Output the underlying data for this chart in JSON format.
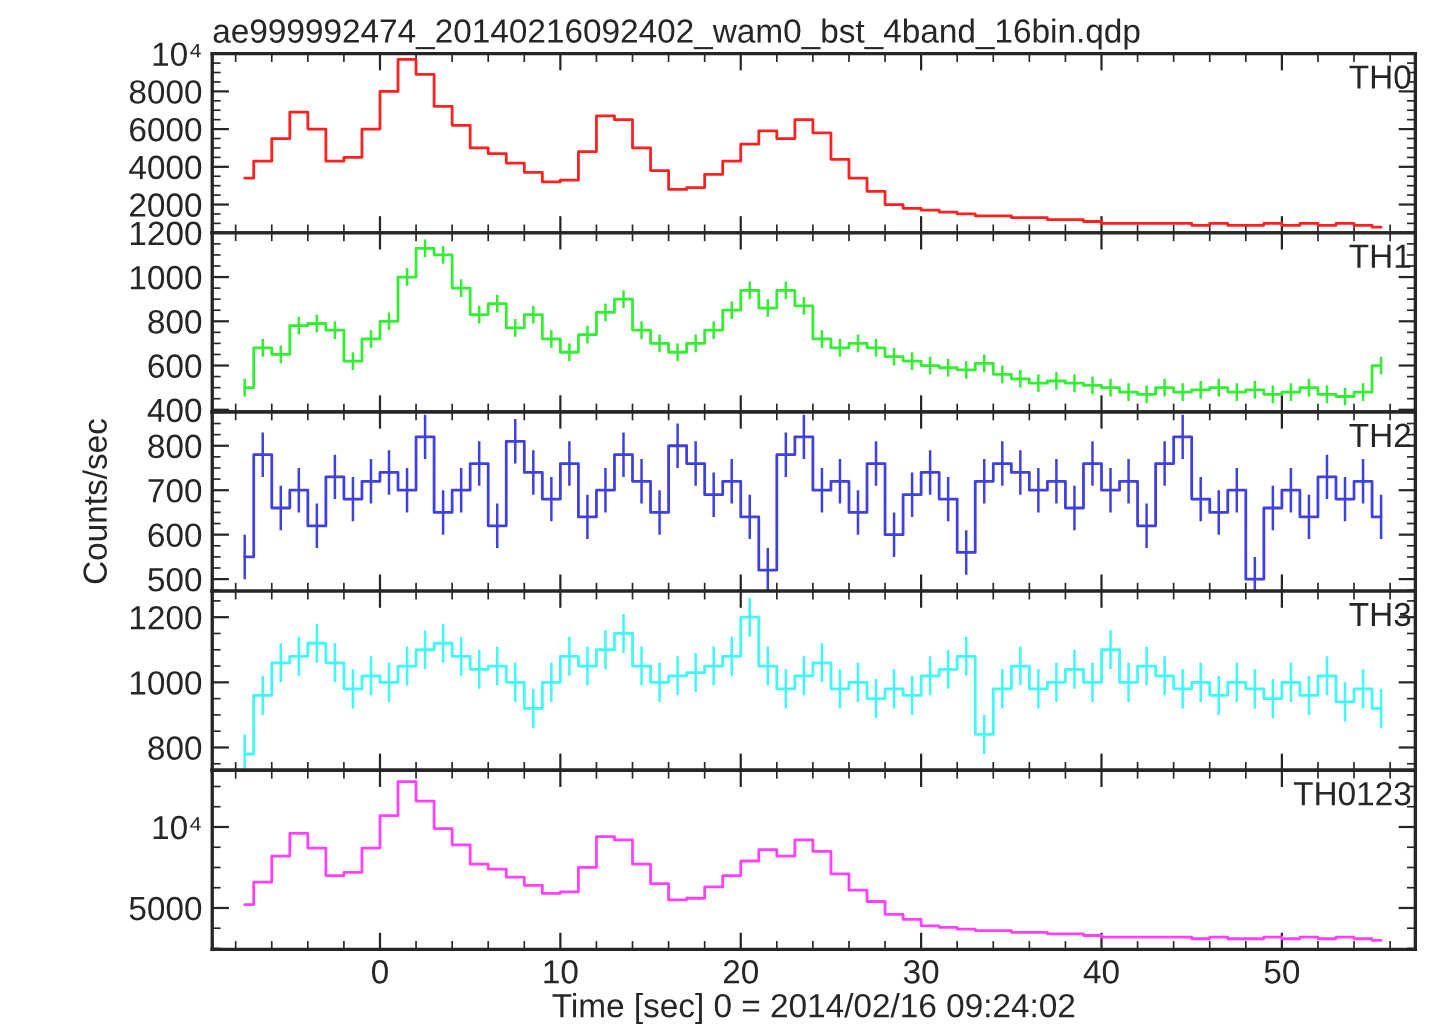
{
  "chart_data": [
    {
      "type": "step",
      "title": "ae999992474_20140216092402_wam0_bst_4band_16bin.qdp",
      "annotations": [
        "TH0"
      ],
      "tick_labels": "y",
      "x": [
        -7.5,
        -6.5,
        -5.5,
        -4.5,
        -3.5,
        -2.5,
        -1.5,
        -0.5,
        0.5,
        1.5,
        2.5,
        3.5,
        4.5,
        5.5,
        6.5,
        7.5,
        8.5,
        9.5,
        10.5,
        11.5,
        12.5,
        13.5,
        14.5,
        15.5,
        16.5,
        17.5,
        18.5,
        19.5,
        20.5,
        21.5,
        22.5,
        23.5,
        24.5,
        25.5,
        26.5,
        27.5,
        28.5,
        29.5,
        30.5,
        31.5,
        32.5,
        33.5,
        34.5,
        35.5,
        36.5,
        37.5,
        38.5,
        39.5,
        40.5,
        41.5,
        42.5,
        43.5,
        44.5,
        45.5,
        46.5,
        47.5,
        48.5,
        49.5,
        50.5,
        51.5,
        52.5,
        53.5,
        54.5,
        55.5
      ],
      "values": [
        3400,
        4300,
        5500,
        6900,
        6000,
        4300,
        4500,
        6000,
        8000,
        9700,
        8900,
        7200,
        6200,
        5000,
        4700,
        4200,
        3700,
        3200,
        3300,
        4800,
        6700,
        6500,
        5000,
        3800,
        2800,
        2900,
        3600,
        4300,
        5200,
        5900,
        5500,
        6500,
        5800,
        4400,
        3400,
        2700,
        2000,
        1800,
        1700,
        1600,
        1500,
        1400,
        1400,
        1300,
        1300,
        1200,
        1200,
        1100,
        1000,
        1000,
        1000,
        1000,
        1000,
        900,
        1000,
        900,
        900,
        1000,
        900,
        1000,
        900,
        1000,
        900,
        800
      ],
      "color": "#ff2020",
      "xlim": [
        -9.3,
        57.4
      ],
      "xticks": [
        0,
        10,
        20,
        30,
        40,
        50
      ],
      "ylim": [
        500,
        10000
      ],
      "yticks": [
        2000,
        4000,
        6000,
        8000,
        {
          "value": 10000,
          "label": "10⁴"
        }
      ]
    },
    {
      "type": "step",
      "annotations": [
        "TH1"
      ],
      "tick_labels": "y",
      "x": [
        -7.5,
        -6.5,
        -5.5,
        -4.5,
        -3.5,
        -2.5,
        -1.5,
        -0.5,
        0.5,
        1.5,
        2.5,
        3.5,
        4.5,
        5.5,
        6.5,
        7.5,
        8.5,
        9.5,
        10.5,
        11.5,
        12.5,
        13.5,
        14.5,
        15.5,
        16.5,
        17.5,
        18.5,
        19.5,
        20.5,
        21.5,
        22.5,
        23.5,
        24.5,
        25.5,
        26.5,
        27.5,
        28.5,
        29.5,
        30.5,
        31.5,
        32.5,
        33.5,
        34.5,
        35.5,
        36.5,
        37.5,
        38.5,
        39.5,
        40.5,
        41.5,
        42.5,
        43.5,
        44.5,
        45.5,
        46.5,
        47.5,
        48.5,
        49.5,
        50.5,
        51.5,
        52.5,
        53.5,
        54.5,
        55.5
      ],
      "values": [
        500,
        680,
        650,
        780,
        790,
        760,
        620,
        720,
        800,
        1000,
        1130,
        1100,
        950,
        830,
        880,
        770,
        830,
        720,
        660,
        740,
        840,
        900,
        760,
        700,
        660,
        700,
        760,
        850,
        940,
        860,
        940,
        870,
        720,
        680,
        700,
        680,
        640,
        620,
        600,
        590,
        580,
        610,
        560,
        540,
        520,
        530,
        520,
        510,
        500,
        480,
        470,
        500,
        480,
        490,
        500,
        480,
        490,
        470,
        480,
        500,
        470,
        460,
        480,
        600
      ],
      "errors": [
        40,
        40,
        40,
        40,
        40,
        40,
        40,
        40,
        40,
        40,
        40,
        40,
        40,
        40,
        40,
        40,
        40,
        40,
        40,
        40,
        40,
        40,
        40,
        40,
        40,
        40,
        40,
        40,
        40,
        40,
        40,
        40,
        40,
        40,
        40,
        40,
        40,
        40,
        40,
        40,
        40,
        40,
        40,
        40,
        40,
        40,
        40,
        40,
        40,
        40,
        40,
        40,
        40,
        40,
        40,
        40,
        40,
        40,
        40,
        40,
        40,
        40,
        40,
        40
      ],
      "color": "#33ee33",
      "xlim": [
        -9.3,
        57.4
      ],
      "xticks": [
        0,
        10,
        20,
        30,
        40,
        50
      ],
      "ylim": [
        390,
        1200
      ],
      "yticks": [
        400,
        600,
        800,
        1000,
        1200
      ]
    },
    {
      "type": "step",
      "ylabel": "Counts/sec",
      "annotations": [
        "TH2"
      ],
      "tick_labels": "y",
      "x": [
        -7.5,
        -6.5,
        -5.5,
        -4.5,
        -3.5,
        -2.5,
        -1.5,
        -0.5,
        0.5,
        1.5,
        2.5,
        3.5,
        4.5,
        5.5,
        6.5,
        7.5,
        8.5,
        9.5,
        10.5,
        11.5,
        12.5,
        13.5,
        14.5,
        15.5,
        16.5,
        17.5,
        18.5,
        19.5,
        20.5,
        21.5,
        22.5,
        23.5,
        24.5,
        25.5,
        26.5,
        27.5,
        28.5,
        29.5,
        30.5,
        31.5,
        32.5,
        33.5,
        34.5,
        35.5,
        36.5,
        37.5,
        38.5,
        39.5,
        40.5,
        41.5,
        42.5,
        43.5,
        44.5,
        45.5,
        46.5,
        47.5,
        48.5,
        49.5,
        50.5,
        51.5,
        52.5,
        53.5,
        54.5,
        55.5
      ],
      "values": [
        550,
        780,
        660,
        700,
        620,
        730,
        680,
        720,
        740,
        700,
        820,
        650,
        700,
        760,
        620,
        810,
        740,
        680,
        760,
        640,
        700,
        780,
        720,
        650,
        800,
        760,
        690,
        720,
        640,
        520,
        780,
        820,
        700,
        720,
        650,
        760,
        600,
        690,
        740,
        680,
        560,
        720,
        760,
        740,
        700,
        720,
        660,
        760,
        700,
        720,
        620,
        760,
        820,
        680,
        650,
        700,
        500,
        660,
        700,
        640,
        730,
        680,
        720,
        640
      ],
      "errors": [
        50,
        50,
        50,
        50,
        50,
        50,
        50,
        50,
        50,
        50,
        50,
        50,
        50,
        50,
        50,
        50,
        50,
        50,
        50,
        50,
        50,
        50,
        50,
        50,
        50,
        50,
        50,
        50,
        50,
        50,
        50,
        50,
        50,
        50,
        50,
        50,
        50,
        50,
        50,
        50,
        50,
        50,
        50,
        50,
        50,
        50,
        50,
        50,
        50,
        50,
        50,
        50,
        50,
        50,
        50,
        50,
        50,
        50,
        50,
        50,
        50,
        50,
        50,
        50
      ],
      "color": "#4040e0",
      "xlim": [
        -9.3,
        57.4
      ],
      "xticks": [
        0,
        10,
        20,
        30,
        40,
        50
      ],
      "ylim": [
        473,
        876
      ],
      "yticks": [
        500,
        600,
        700,
        800
      ]
    },
    {
      "type": "step",
      "annotations": [
        "TH3"
      ],
      "tick_labels": "y",
      "x": [
        -7.5,
        -6.5,
        -5.5,
        -4.5,
        -3.5,
        -2.5,
        -1.5,
        -0.5,
        0.5,
        1.5,
        2.5,
        3.5,
        4.5,
        5.5,
        6.5,
        7.5,
        8.5,
        9.5,
        10.5,
        11.5,
        12.5,
        13.5,
        14.5,
        15.5,
        16.5,
        17.5,
        18.5,
        19.5,
        20.5,
        21.5,
        22.5,
        23.5,
        24.5,
        25.5,
        26.5,
        27.5,
        28.5,
        29.5,
        30.5,
        31.5,
        32.5,
        33.5,
        34.5,
        35.5,
        36.5,
        37.5,
        38.5,
        39.5,
        40.5,
        41.5,
        42.5,
        43.5,
        44.5,
        45.5,
        46.5,
        47.5,
        48.5,
        49.5,
        50.5,
        51.5,
        52.5,
        53.5,
        54.5,
        55.5
      ],
      "values": [
        780,
        960,
        1060,
        1080,
        1120,
        1060,
        980,
        1020,
        1000,
        1050,
        1100,
        1120,
        1080,
        1040,
        1050,
        1000,
        920,
        1000,
        1080,
        1050,
        1100,
        1150,
        1050,
        1000,
        1020,
        1030,
        1050,
        1080,
        1200,
        1050,
        980,
        1020,
        1060,
        980,
        1000,
        950,
        980,
        960,
        1020,
        1040,
        1080,
        840,
        980,
        1050,
        980,
        1000,
        1040,
        1000,
        1100,
        1000,
        1050,
        1020,
        980,
        1000,
        960,
        1000,
        980,
        950,
        1000,
        960,
        1020,
        940,
        980,
        920
      ],
      "errors": [
        60,
        60,
        60,
        60,
        60,
        60,
        60,
        60,
        60,
        60,
        60,
        60,
        60,
        60,
        60,
        60,
        60,
        60,
        60,
        60,
        60,
        60,
        60,
        60,
        60,
        60,
        60,
        60,
        60,
        60,
        60,
        60,
        60,
        60,
        60,
        60,
        60,
        60,
        60,
        60,
        60,
        60,
        60,
        60,
        60,
        60,
        60,
        60,
        60,
        60,
        60,
        60,
        60,
        60,
        60,
        60,
        60,
        60,
        60,
        60,
        60,
        60,
        60,
        60
      ],
      "color": "#40f8f8",
      "xlim": [
        -9.3,
        57.4
      ],
      "xticks": [
        0,
        10,
        20,
        30,
        40,
        50
      ],
      "ylim": [
        730,
        1280
      ],
      "yticks": [
        800,
        1000,
        1200
      ]
    },
    {
      "type": "step",
      "xlabel": "Time [sec] 0 = 2014/02/16 09:24:02",
      "annotations": [
        "TH0123"
      ],
      "x": [
        -7.5,
        -6.5,
        -5.5,
        -4.5,
        -3.5,
        -2.5,
        -1.5,
        -0.5,
        0.5,
        1.5,
        2.5,
        3.5,
        4.5,
        5.5,
        6.5,
        7.5,
        8.5,
        9.5,
        10.5,
        11.5,
        12.5,
        13.5,
        14.5,
        15.5,
        16.5,
        17.5,
        18.5,
        19.5,
        20.5,
        21.5,
        22.5,
        23.5,
        24.5,
        25.5,
        26.5,
        27.5,
        28.5,
        29.5,
        30.5,
        31.5,
        32.5,
        33.5,
        34.5,
        35.5,
        36.5,
        37.5,
        38.5,
        39.5,
        40.5,
        41.5,
        42.5,
        43.5,
        44.5,
        45.5,
        46.5,
        47.5,
        48.5,
        49.5,
        50.5,
        51.5,
        52.5,
        53.5,
        54.5,
        55.5
      ],
      "values": [
        5200,
        6600,
        8200,
        9600,
        8700,
        7000,
        7200,
        8700,
        10700,
        12800,
        11600,
        9900,
        8900,
        7700,
        7400,
        6900,
        6400,
        5900,
        6000,
        7500,
        9400,
        9200,
        7700,
        6500,
        5500,
        5600,
        6300,
        7000,
        7900,
        8600,
        8200,
        9200,
        8500,
        7100,
        6100,
        5400,
        4600,
        4300,
        3900,
        3800,
        3700,
        3600,
        3600,
        3500,
        3500,
        3400,
        3400,
        3300,
        3200,
        3200,
        3200,
        3200,
        3200,
        3100,
        3200,
        3100,
        3100,
        3200,
        3100,
        3200,
        3100,
        3200,
        3100,
        3000
      ],
      "color": "#ff40ff",
      "xlim": [
        -9.3,
        57.4
      ],
      "xticks": [
        0,
        10,
        20,
        30,
        40,
        50
      ],
      "ylim": [
        2440,
        13500
      ],
      "yticks": [
        5000,
        {
          "value": 10000,
          "label": "10⁴"
        }
      ]
    }
  ]
}
